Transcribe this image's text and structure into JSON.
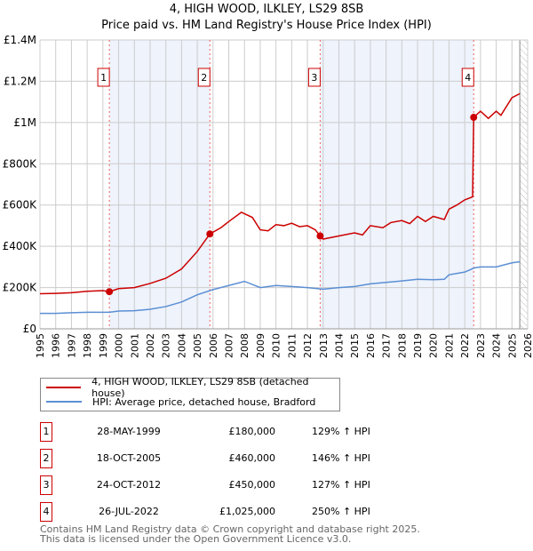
{
  "chart_data": {
    "type": "line",
    "title": "4, HIGH WOOD, ILKLEY, LS29 8SB",
    "subtitle": "Price paid vs. HM Land Registry's House Price Index (HPI)",
    "xlim": [
      1995,
      2026
    ],
    "ylim": [
      0,
      1400000
    ],
    "yticks": [
      {
        "v": 0,
        "label": "£0"
      },
      {
        "v": 200000,
        "label": "£200K"
      },
      {
        "v": 400000,
        "label": "£400K"
      },
      {
        "v": 600000,
        "label": "£600K"
      },
      {
        "v": 800000,
        "label": "£800K"
      },
      {
        "v": 1000000,
        "label": "£1M"
      },
      {
        "v": 1200000,
        "label": "£1.2M"
      },
      {
        "v": 1400000,
        "label": "£1.4M"
      }
    ],
    "xticks": [
      "1995",
      "1996",
      "1997",
      "1998",
      "1999",
      "2000",
      "2001",
      "2002",
      "2003",
      "2004",
      "2005",
      "2006",
      "2007",
      "2008",
      "2009",
      "2010",
      "2011",
      "2012",
      "2013",
      "2014",
      "2015",
      "2016",
      "2017",
      "2018",
      "2019",
      "2020",
      "2021",
      "2022",
      "2023",
      "2024",
      "2025",
      "2026"
    ],
    "grid": true,
    "colors": {
      "property": "#cc0000",
      "hpi": "#5b8fd4",
      "shade": "#eef3fc"
    },
    "shaded_ranges": [
      [
        1999.41,
        2005.8
      ],
      [
        2012.81,
        2022.57
      ]
    ],
    "future_hatch_from": 2025.5,
    "series": [
      {
        "name": "4, HIGH WOOD, ILKLEY, LS29 8SB (detached house)",
        "color": "#cc0000",
        "x": [
          1995,
          1996,
          1997,
          1998,
          1999,
          1999.41,
          2000,
          2001,
          2002,
          2003,
          2004,
          2005,
          2005.8,
          2006.5,
          2007,
          2007.8,
          2008.5,
          2009,
          2009.5,
          2010,
          2010.5,
          2011,
          2011.5,
          2012,
          2012.5,
          2012.81,
          2013,
          2014,
          2015,
          2015.5,
          2016,
          2016.8,
          2017.3,
          2018,
          2018.5,
          2019,
          2019.5,
          2020,
          2020.7,
          2021,
          2021.5,
          2022,
          2022.5,
          2022.57,
          2023,
          2023.5,
          2024,
          2024.3,
          2025,
          2025.5
        ],
        "y": [
          170000,
          172000,
          175000,
          182000,
          185000,
          180000,
          195000,
          200000,
          220000,
          245000,
          290000,
          375000,
          460000,
          490000,
          520000,
          565000,
          540000,
          480000,
          475000,
          505000,
          500000,
          512000,
          495000,
          500000,
          480000,
          450000,
          435000,
          450000,
          465000,
          455000,
          500000,
          490000,
          515000,
          525000,
          510000,
          545000,
          520000,
          545000,
          530000,
          580000,
          600000,
          625000,
          640000,
          1025000,
          1055000,
          1020000,
          1055000,
          1035000,
          1120000,
          1140000
        ]
      },
      {
        "name": "HPI: Average price, detached house, Bradford",
        "color": "#5b8fd4",
        "x": [
          1995,
          1996,
          1997,
          1998,
          1999.41,
          2000,
          2001,
          2002,
          2003,
          2004,
          2005,
          2006,
          2007,
          2008,
          2009,
          2010,
          2011,
          2012,
          2013,
          2014,
          2015,
          2016,
          2017,
          2018,
          2019,
          2020,
          2020.7,
          2021,
          2022,
          2022.6,
          2023,
          2024,
          2025,
          2025.5
        ],
        "y": [
          75000,
          75000,
          78000,
          80000,
          80000,
          86000,
          88000,
          95000,
          108000,
          130000,
          165000,
          190000,
          210000,
          230000,
          200000,
          210000,
          205000,
          200000,
          192000,
          200000,
          205000,
          218000,
          225000,
          232000,
          240000,
          238000,
          240000,
          262000,
          275000,
          295000,
          300000,
          300000,
          320000,
          325000
        ]
      }
    ],
    "sales": [
      {
        "n": "1",
        "x": 1999.41,
        "price": 180000,
        "date": "28-MAY-1999",
        "price_label": "£180,000",
        "hpi": "129% ↑ HPI"
      },
      {
        "n": "2",
        "x": 2005.8,
        "price": 460000,
        "date": "18-OCT-2005",
        "price_label": "£460,000",
        "hpi": "146% ↑ HPI"
      },
      {
        "n": "3",
        "x": 2012.81,
        "price": 450000,
        "date": "24-OCT-2012",
        "price_label": "£450,000",
        "hpi": "127% ↑ HPI"
      },
      {
        "n": "4",
        "x": 2022.57,
        "price": 1025000,
        "date": "26-JUL-2022",
        "price_label": "£1,025,000",
        "hpi": "250% ↑ HPI"
      }
    ]
  },
  "footer": {
    "line1": "Contains HM Land Registry data © Crown copyright and database right 2025.",
    "line2": "This data is licensed under the Open Government Licence v3.0."
  }
}
